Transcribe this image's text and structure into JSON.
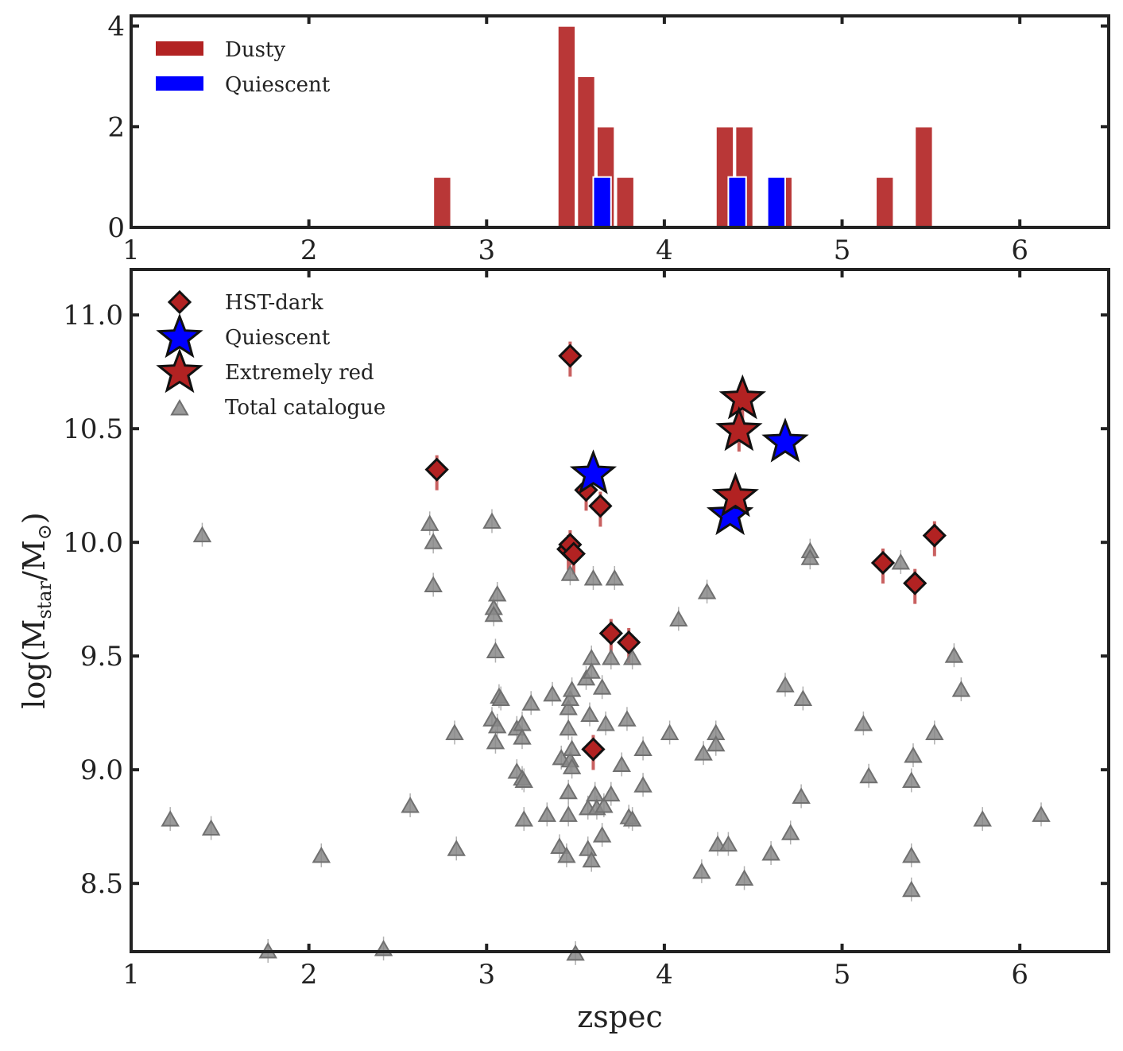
{
  "chart_data": [
    {
      "type": "bar",
      "title": "",
      "xlabel": "",
      "ylabel": "",
      "xlim": [
        1,
        6.5
      ],
      "ylim": [
        0,
        4.2
      ],
      "xticks": [
        "1",
        "2",
        "3",
        "4",
        "5",
        "6"
      ],
      "yticks": [
        "0",
        "2",
        "4"
      ],
      "bin_width": 0.1,
      "series": [
        {
          "name": "Dusty",
          "color": "#b22222",
          "bins": [
            {
              "start": 2.7,
              "count": 1
            },
            {
              "start": 3.4,
              "count": 4
            },
            {
              "start": 3.51,
              "count": 3
            },
            {
              "start": 3.62,
              "count": 2
            },
            {
              "start": 3.73,
              "count": 1
            },
            {
              "start": 4.29,
              "count": 2
            },
            {
              "start": 4.4,
              "count": 2
            },
            {
              "start": 4.62,
              "count": 1
            },
            {
              "start": 5.19,
              "count": 1
            },
            {
              "start": 5.41,
              "count": 2
            }
          ]
        },
        {
          "name": "Quiescent",
          "color": "#0000ff",
          "bins": [
            {
              "start": 3.6,
              "count": 1
            },
            {
              "start": 4.36,
              "count": 1
            },
            {
              "start": 4.58,
              "count": 1
            }
          ]
        }
      ],
      "legend": [
        "Dusty",
        "Quiescent"
      ],
      "legend_position": "top-left"
    },
    {
      "type": "scatter",
      "title": "",
      "xlabel": "zspec",
      "ylabel": "log(M_star/M_⊙)",
      "xlim": [
        1,
        6.5
      ],
      "ylim": [
        8.2,
        11.2
      ],
      "xticks": [
        "1",
        "2",
        "3",
        "4",
        "5",
        "6"
      ],
      "yticks": [
        "8.5",
        "9.0",
        "9.5",
        "10.0",
        "10.5",
        "11.0"
      ],
      "legend": [
        "HST-dark",
        "Quiescent",
        "Extremely red",
        "Total catalogue"
      ],
      "legend_position": "top-left",
      "series": [
        {
          "name": "Total catalogue",
          "marker": "triangle",
          "color": "#888888",
          "points": [
            [
              1.22,
              8.78
            ],
            [
              1.4,
              10.03
            ],
            [
              1.45,
              8.74
            ],
            [
              1.77,
              8.2
            ],
            [
              2.07,
              8.62
            ],
            [
              2.42,
              8.21
            ],
            [
              2.57,
              8.84
            ],
            [
              2.68,
              10.08
            ],
            [
              2.7,
              10.0
            ],
            [
              2.7,
              9.81
            ],
            [
              2.82,
              9.16
            ],
            [
              2.83,
              8.65
            ],
            [
              3.03,
              10.09
            ],
            [
              3.03,
              9.22
            ],
            [
              3.04,
              9.71
            ],
            [
              3.04,
              9.68
            ],
            [
              3.05,
              9.52
            ],
            [
              3.06,
              9.77
            ],
            [
              3.06,
              9.19
            ],
            [
              3.07,
              9.32
            ],
            [
              3.08,
              9.31
            ],
            [
              3.05,
              9.12
            ],
            [
              3.17,
              9.18
            ],
            [
              3.17,
              8.99
            ],
            [
              3.2,
              9.2
            ],
            [
              3.2,
              9.14
            ],
            [
              3.2,
              8.96
            ],
            [
              3.21,
              8.95
            ],
            [
              3.21,
              8.78
            ],
            [
              3.25,
              9.29
            ],
            [
              3.34,
              8.8
            ],
            [
              3.37,
              9.33
            ],
            [
              3.41,
              8.66
            ],
            [
              3.42,
              9.05
            ],
            [
              3.45,
              8.62
            ],
            [
              3.46,
              9.27
            ],
            [
              3.46,
              9.18
            ],
            [
              3.46,
              8.9
            ],
            [
              3.46,
              8.8
            ],
            [
              3.47,
              9.86
            ],
            [
              3.47,
              9.31
            ],
            [
              3.47,
              9.04
            ],
            [
              3.48,
              9.35
            ],
            [
              3.48,
              9.09
            ],
            [
              3.48,
              9.01
            ],
            [
              3.5,
              8.19
            ],
            [
              3.56,
              9.4
            ],
            [
              3.57,
              8.83
            ],
            [
              3.57,
              8.65
            ],
            [
              3.58,
              9.24
            ],
            [
              3.59,
              9.49
            ],
            [
              3.59,
              9.43
            ],
            [
              3.59,
              8.6
            ],
            [
              3.6,
              9.84
            ],
            [
              3.61,
              8.89
            ],
            [
              3.62,
              8.83
            ],
            [
              3.65,
              9.36
            ],
            [
              3.65,
              8.71
            ],
            [
              3.66,
              8.84
            ],
            [
              3.67,
              9.2
            ],
            [
              3.7,
              9.49
            ],
            [
              3.7,
              8.89
            ],
            [
              3.72,
              9.84
            ],
            [
              3.76,
              9.02
            ],
            [
              3.79,
              9.22
            ],
            [
              3.8,
              8.79
            ],
            [
              3.82,
              9.49
            ],
            [
              3.82,
              8.78
            ],
            [
              3.88,
              9.09
            ],
            [
              3.88,
              8.93
            ],
            [
              4.03,
              9.16
            ],
            [
              4.08,
              9.66
            ],
            [
              4.21,
              8.55
            ],
            [
              4.22,
              9.07
            ],
            [
              4.24,
              9.78
            ],
            [
              4.29,
              9.16
            ],
            [
              4.29,
              9.11
            ],
            [
              4.3,
              8.67
            ],
            [
              4.36,
              8.67
            ],
            [
              4.45,
              8.52
            ],
            [
              4.6,
              8.63
            ],
            [
              4.68,
              9.37
            ],
            [
              4.71,
              8.72
            ],
            [
              4.77,
              8.88
            ],
            [
              4.78,
              9.31
            ],
            [
              4.82,
              9.96
            ],
            [
              4.82,
              9.93
            ],
            [
              5.12,
              9.2
            ],
            [
              5.15,
              8.97
            ],
            [
              5.33,
              9.91
            ],
            [
              5.39,
              8.95
            ],
            [
              5.39,
              8.62
            ],
            [
              5.39,
              8.47
            ],
            [
              5.4,
              9.06
            ],
            [
              5.52,
              9.16
            ],
            [
              5.63,
              9.5
            ],
            [
              5.67,
              9.35
            ],
            [
              5.79,
              8.78
            ],
            [
              6.12,
              8.8
            ]
          ]
        },
        {
          "name": "HST-dark",
          "marker": "diamond",
          "color": "#b22222",
          "points": [
            [
              2.72,
              10.32
            ],
            [
              3.47,
              10.82
            ],
            [
              3.56,
              10.23
            ],
            [
              3.64,
              10.16
            ],
            [
              3.46,
              9.97
            ],
            [
              3.47,
              9.99
            ],
            [
              3.49,
              9.95
            ],
            [
              3.7,
              9.6
            ],
            [
              3.8,
              9.56
            ],
            [
              3.6,
              9.09
            ],
            [
              5.23,
              9.91
            ],
            [
              5.41,
              9.82
            ],
            [
              5.52,
              10.03
            ]
          ]
        },
        {
          "name": "Quiescent",
          "marker": "star",
          "color": "#0000ff",
          "points": [
            [
              3.6,
              10.3
            ],
            [
              4.37,
              10.12
            ],
            [
              4.68,
              10.44
            ]
          ]
        },
        {
          "name": "Extremely red",
          "marker": "star",
          "color": "#b22222",
          "points": [
            [
              4.44,
              10.63
            ],
            [
              4.42,
              10.49
            ],
            [
              4.4,
              10.2
            ]
          ]
        }
      ]
    }
  ]
}
